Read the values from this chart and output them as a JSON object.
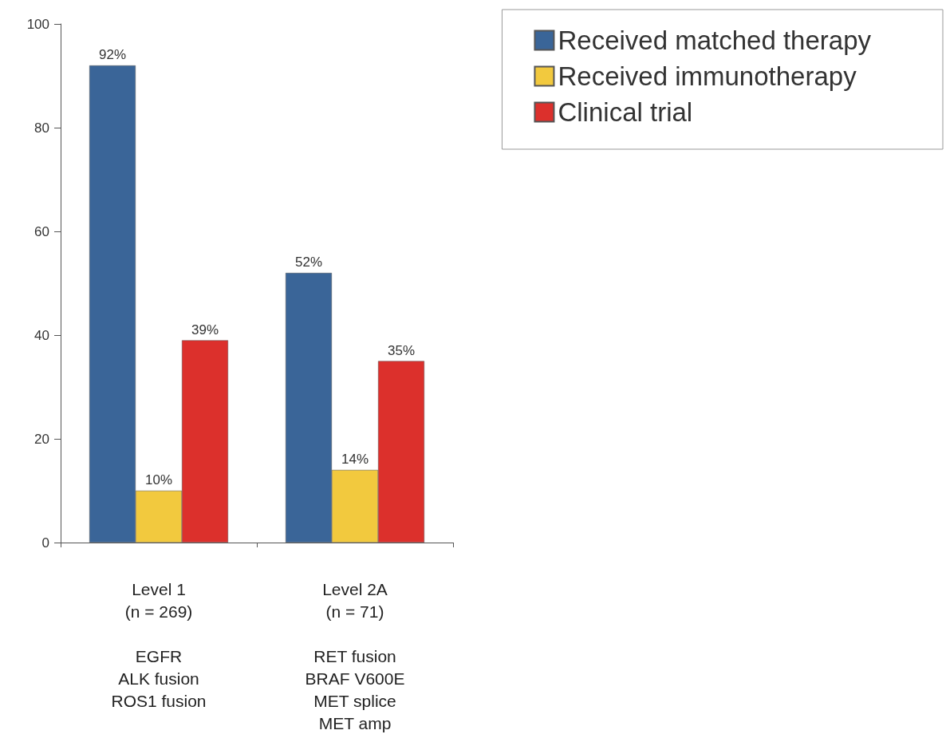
{
  "chart_data": {
    "type": "bar",
    "categories": [
      "Level 1\n(n = 269)\n\nEGFR\nALK fusion\nROS1 fusion",
      "Level 2A\n(n = 71)\n\nRET fusion\nBRAF V600E\nMET splice\nMET amp"
    ],
    "series": [
      {
        "name": "Received matched therapy",
        "color": "#3a6598",
        "values": [
          92,
          52
        ],
        "value_labels": [
          "92%",
          "52%"
        ]
      },
      {
        "name": "Received immunotherapy",
        "color": "#f2c93e",
        "values": [
          10,
          14
        ],
        "value_labels": [
          "10%",
          "14%"
        ]
      },
      {
        "name": "Clinical trial",
        "color": "#dc302c",
        "values": [
          39,
          35
        ],
        "value_labels": [
          "39%",
          "35%"
        ]
      }
    ],
    "ylim": [
      0,
      100
    ],
    "yticks": [
      0,
      20,
      40,
      60,
      80,
      100
    ],
    "grid": false,
    "legend": "top right"
  }
}
